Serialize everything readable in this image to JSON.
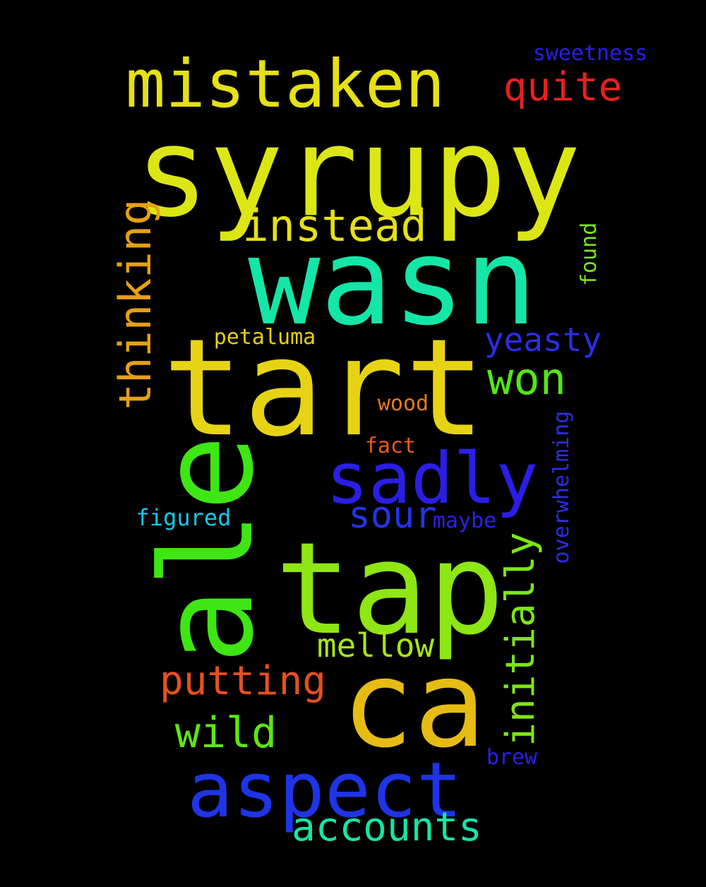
{
  "words": [
    {
      "text": "syrupy",
      "color": "#dce614"
    },
    {
      "text": "mistaken",
      "color": "#e6e014"
    },
    {
      "text": "quite",
      "color": "#e62020"
    },
    {
      "text": "sweetness",
      "color": "#2a1ee6"
    },
    {
      "text": "instead",
      "color": "#e6e014"
    },
    {
      "text": "wasn",
      "color": "#14e6a8"
    },
    {
      "text": "thinking",
      "color": "#e6a014"
    },
    {
      "text": "found",
      "color": "#7ae614"
    },
    {
      "text": "tart",
      "color": "#e6d414"
    },
    {
      "text": "petaluma",
      "color": "#e6d014"
    },
    {
      "text": "yeasty",
      "color": "#2a2ee6"
    },
    {
      "text": "won",
      "color": "#54e614"
    },
    {
      "text": "wood",
      "color": "#e67a1e"
    },
    {
      "text": "ale",
      "color": "#3ee614"
    },
    {
      "text": "fact",
      "color": "#e65a1e"
    },
    {
      "text": "sadly",
      "color": "#2a1ee6"
    },
    {
      "text": "overwhelming",
      "color": "#2a2ee6"
    },
    {
      "text": "sour",
      "color": "#2234e6"
    },
    {
      "text": "figured",
      "color": "#14c8e6"
    },
    {
      "text": "maybe",
      "color": "#2a20e6"
    },
    {
      "text": "tap",
      "color": "#8ee614"
    },
    {
      "text": "initially",
      "color": "#7ee614"
    },
    {
      "text": "mellow",
      "color": "#a8e614"
    },
    {
      "text": "ca",
      "color": "#e6bc14"
    },
    {
      "text": "putting",
      "color": "#e6501e"
    },
    {
      "text": "wild",
      "color": "#5ee614"
    },
    {
      "text": "brew",
      "color": "#2a20e6"
    },
    {
      "text": "aspect",
      "color": "#1e34e6"
    },
    {
      "text": "accounts",
      "color": "#14e6a4"
    }
  ]
}
